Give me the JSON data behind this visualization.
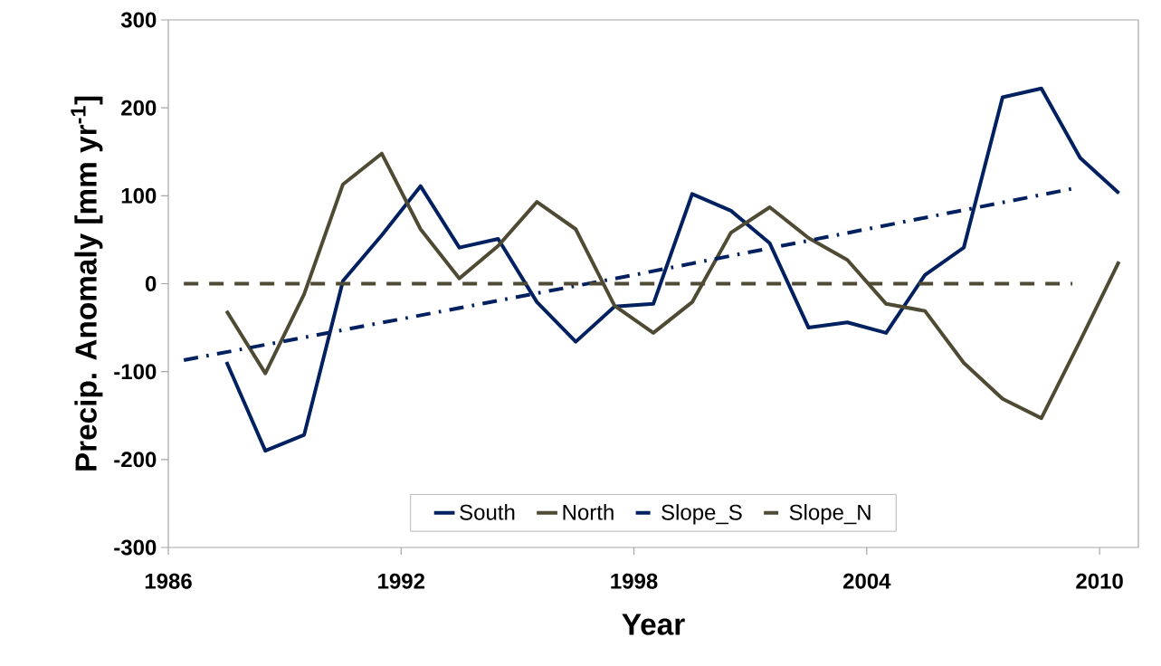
{
  "chart_data": {
    "type": "line",
    "xlabel": "Year",
    "ylabel": "Precip. Anomaly [mm yr$^{-1}$]",
    "xlim": [
      1986,
      2011
    ],
    "xticks": [
      1986,
      1992,
      1998,
      2004,
      2010
    ],
    "ylim": [
      -300,
      300
    ],
    "yticks": [
      -300,
      -200,
      -100,
      0,
      100,
      200,
      300
    ],
    "grid": false,
    "legend": "bottom",
    "marker": "none",
    "x": [
      1987.5,
      1988.5,
      1989.5,
      1990.5,
      1991.5,
      1992.5,
      1993.5,
      1994.5,
      1995.5,
      1996.5,
      1997.5,
      1998.5,
      1999.5,
      2000.5,
      2001.5,
      2002.5,
      2003.5,
      2004.5,
      2005.5,
      2006.5,
      2007.5,
      2008.5,
      2009.5,
      2010.5
    ],
    "series": [
      {
        "name": "South",
        "color": "#002060",
        "line_style": "solid",
        "values": [
          -89,
          -190,
          -172,
          3,
          55,
          111,
          41,
          51,
          -21,
          -66,
          -26,
          -23,
          102,
          83,
          46,
          -50,
          -44,
          -56,
          10,
          41,
          212,
          222,
          143,
          103
        ]
      },
      {
        "name": "North",
        "color": "#4f4a33",
        "line_style": "solid",
        "values": [
          -31,
          -102,
          -12,
          113,
          148,
          62,
          6,
          43,
          93,
          62,
          -25,
          -56,
          -21,
          58,
          87,
          52,
          27,
          -23,
          -31,
          -90,
          -131,
          -153,
          -65,
          25
        ]
      },
      {
        "name": "Slope_S",
        "color": "#002060",
        "line_style": "dashdot",
        "x": [
          1986.4,
          1998,
          2009.3
        ],
        "values": [
          -87,
          10,
          108
        ]
      },
      {
        "name": "Slope_N",
        "color": "#4f4a33",
        "line_style": "dashed",
        "x": [
          1986.4,
          2009.3
        ],
        "values": [
          0,
          0
        ]
      }
    ]
  }
}
